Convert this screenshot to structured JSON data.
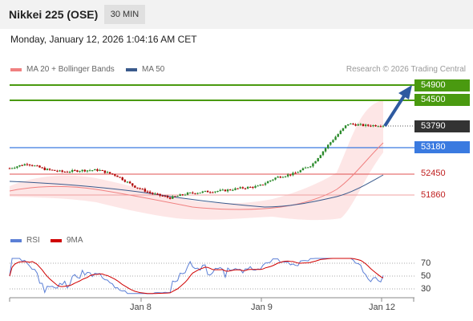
{
  "header": {
    "instrument": "Nikkei 225 (OSE)",
    "timeframe": "30 MIN"
  },
  "datetime": "Monday, January 12, 2026 1:04:16 AM CET",
  "legend": {
    "ma20": "MA 20 + Bollinger Bands",
    "ma50": "MA 50",
    "ma20_color": "#f08080",
    "ma50_color": "#3a5a8c",
    "credit": "Research © 2026 Trading Central"
  },
  "levels": [
    {
      "value": "54900",
      "type": "resistance",
      "color": "#4a9a10"
    },
    {
      "value": "54500",
      "type": "resistance",
      "color": "#4a9a10"
    },
    {
      "value": "53790",
      "type": "last-price",
      "color": "#333333"
    },
    {
      "value": "53180",
      "type": "pivot",
      "color": "#3a7ae0"
    },
    {
      "value": "52450",
      "type": "support",
      "color": "#e05050"
    },
    {
      "value": "51860",
      "type": "support",
      "color": "#e05050"
    }
  ],
  "rsi_legend": {
    "rsi": "RSI",
    "ma9": "9MA",
    "rsi_color": "#5b7fd6",
    "ma9_color": "#d00000"
  },
  "rsi_axis": [
    "70",
    "50",
    "30"
  ],
  "x_axis": [
    "Jan 8",
    "Jan 9",
    "Jan 12"
  ],
  "chart_data": {
    "type": "candlestick",
    "y_levels": [
      54900,
      54500,
      53790,
      53180,
      52450,
      51860
    ],
    "x_tick_labels": [
      "Jan 8",
      "Jan 9",
      "Jan 12"
    ],
    "series": [
      {
        "name": "MA 20 + Bollinger Bands"
      },
      {
        "name": "MA 50"
      }
    ],
    "rsi_levels": [
      70,
      50,
      30
    ],
    "price_path": [
      52600,
      52730,
      52570,
      52500,
      52540,
      52550,
      52400,
      52100,
      51900,
      51780,
      51900,
      51950,
      51980,
      52050,
      52100,
      52350,
      52450,
      52700,
      53300,
      53830,
      53780,
      53790
    ],
    "forecast_target": 54900
  }
}
